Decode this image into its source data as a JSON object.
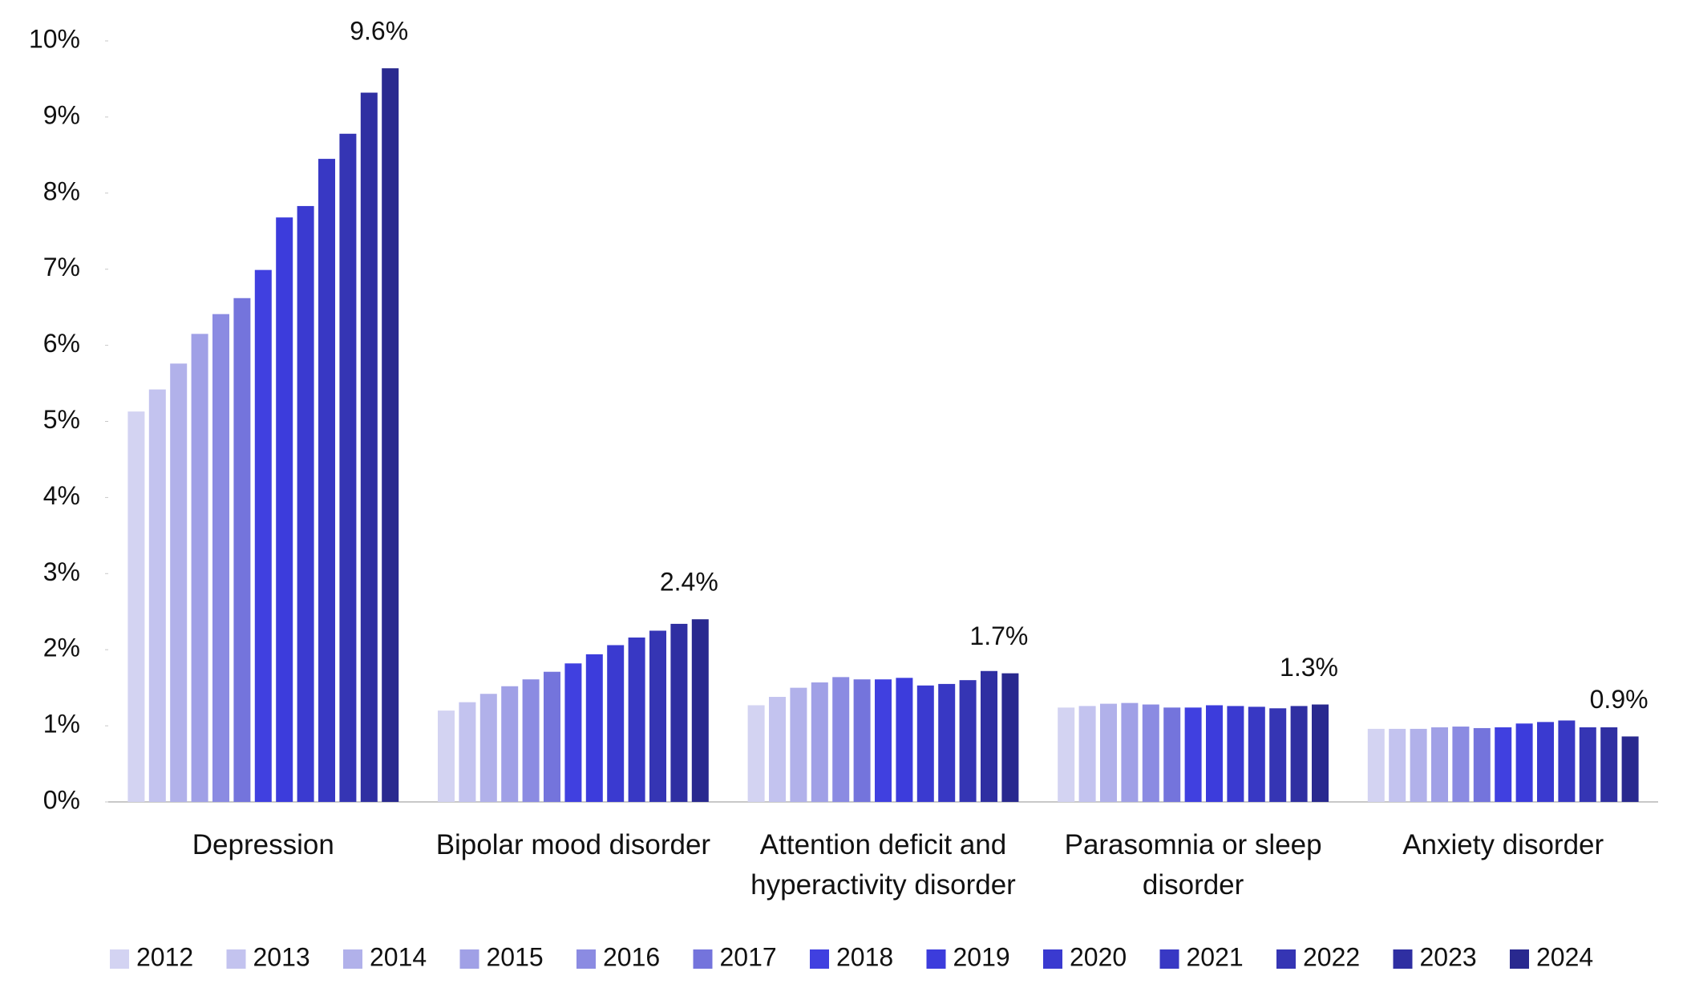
{
  "chart_data": {
    "type": "bar",
    "categories": [
      "Depression",
      "Bipolar mood disorder",
      "Attention deficit and hyperactivity disorder",
      "Parasomnia or sleep disorder",
      "Anxiety disorder"
    ],
    "ylim": [
      0,
      10
    ],
    "yticks": [
      {
        "value": 0,
        "label": "0%"
      },
      {
        "value": 1,
        "label": "1%"
      },
      {
        "value": 2,
        "label": "2%"
      },
      {
        "value": 3,
        "label": "3%"
      },
      {
        "value": 4,
        "label": "4%"
      },
      {
        "value": 5,
        "label": "5%"
      },
      {
        "value": 6,
        "label": "6%"
      },
      {
        "value": 7,
        "label": "7%"
      },
      {
        "value": 8,
        "label": "8%"
      },
      {
        "value": 9,
        "label": "9%"
      },
      {
        "value": 10,
        "label": "10%"
      }
    ],
    "grid": false,
    "legend": "bottom",
    "series": [
      {
        "name": "2012",
        "color": "#d3d3f2",
        "values": [
          5.13,
          1.2,
          1.27,
          1.24,
          0.96
        ]
      },
      {
        "name": "2013",
        "color": "#c3c3ef",
        "values": [
          5.42,
          1.31,
          1.38,
          1.26,
          0.96
        ]
      },
      {
        "name": "2014",
        "color": "#b1b1ea",
        "values": [
          5.76,
          1.42,
          1.5,
          1.29,
          0.96
        ]
      },
      {
        "name": "2015",
        "color": "#a0a0e6",
        "values": [
          6.15,
          1.52,
          1.57,
          1.3,
          0.98
        ]
      },
      {
        "name": "2016",
        "color": "#8b8be2",
        "values": [
          6.41,
          1.61,
          1.64,
          1.28,
          0.99
        ]
      },
      {
        "name": "2017",
        "color": "#7474dc",
        "values": [
          6.62,
          1.71,
          1.61,
          1.24,
          0.97
        ]
      },
      {
        "name": "2018",
        "color": "#4040e0",
        "values": [
          6.99,
          1.82,
          1.61,
          1.24,
          0.98
        ]
      },
      {
        "name": "2019",
        "color": "#3c3cdc",
        "values": [
          7.68,
          1.94,
          1.63,
          1.27,
          1.03
        ]
      },
      {
        "name": "2020",
        "color": "#3a3ad0",
        "values": [
          7.83,
          2.06,
          1.53,
          1.26,
          1.05
        ]
      },
      {
        "name": "2021",
        "color": "#3838c4",
        "values": [
          8.45,
          2.16,
          1.55,
          1.25,
          1.07
        ]
      },
      {
        "name": "2022",
        "color": "#3535b4",
        "values": [
          8.78,
          2.25,
          1.6,
          1.23,
          0.98
        ]
      },
      {
        "name": "2023",
        "color": "#2f2fa2",
        "values": [
          9.32,
          2.34,
          1.72,
          1.26,
          0.98
        ]
      },
      {
        "name": "2024",
        "color": "#29298f",
        "values": [
          9.64,
          2.4,
          1.69,
          1.28,
          0.86
        ],
        "value_labels": [
          "9.6%",
          "2.4%",
          "1.7%",
          "1.3%",
          "0.9%"
        ]
      }
    ]
  }
}
